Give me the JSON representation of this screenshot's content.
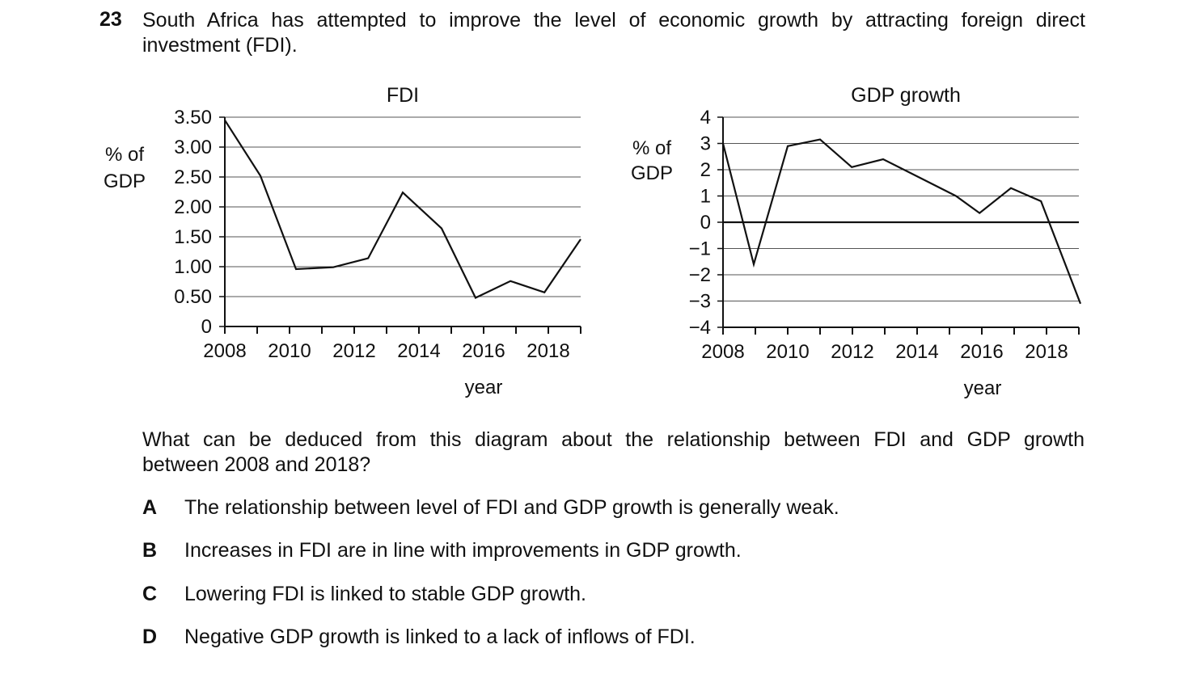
{
  "question": {
    "number": "23",
    "stem_line1": "South Africa has attempted to improve the level of economic growth by attracting foreign direct",
    "stem_line2": "investment (FDI).",
    "prompt_line1": "What can be deduced from this diagram about the relationship between FDI and GDP growth",
    "prompt_line2": "between 2008 and 2018?",
    "options": [
      {
        "letter": "A",
        "text": "The relationship between level of FDI and GDP growth is generally weak."
      },
      {
        "letter": "B",
        "text": "Increases in FDI are in line with improvements in GDP growth."
      },
      {
        "letter": "C",
        "text": "Lowering FDI is linked to stable GDP growth."
      },
      {
        "letter": "D",
        "text": "Negative GDP growth is linked to a lack of inflows of FDI."
      }
    ]
  },
  "chart_data": [
    {
      "type": "line",
      "title": "FDI",
      "xlabel": "year",
      "ylabel_line1": "% of",
      "ylabel_line2": "GDP",
      "xlim": [
        2008,
        2019
      ],
      "ylim": [
        0,
        3.5
      ],
      "grid": true,
      "x_tick_labels": [
        "2008",
        "2010",
        "2012",
        "2014",
        "2016",
        "2018"
      ],
      "y_tick_labels": [
        "3.50",
        "3.00",
        "2.50",
        "2.00",
        "1.50",
        "1.00",
        "0.50",
        "0"
      ],
      "y_ticks": [
        3.5,
        3.0,
        2.5,
        2.0,
        1.5,
        1.0,
        0.5,
        0
      ],
      "series": [
        {
          "name": "FDI",
          "x": [
            2008,
            2009.1,
            2010.2,
            2011.35,
            2012.43,
            2013.5,
            2014.7,
            2015.75,
            2016.83,
            2017.88,
            2019
          ],
          "values": [
            3.45,
            2.52,
            0.96,
            0.99,
            1.14,
            2.24,
            1.64,
            0.48,
            0.76,
            0.57,
            1.46
          ]
        }
      ]
    },
    {
      "type": "line",
      "title": "GDP growth",
      "xlabel": "year",
      "ylabel_line1": "% of",
      "ylabel_line2": "GDP",
      "xlim": [
        2008,
        2019
      ],
      "ylim": [
        -4,
        4
      ],
      "grid": true,
      "x_tick_labels": [
        "2008",
        "2010",
        "2012",
        "2014",
        "2016",
        "2018"
      ],
      "y_tick_labels": [
        "4",
        "3",
        "2",
        "1",
        "0",
        "−1",
        "−2",
        "−3",
        "−4"
      ],
      "y_ticks": [
        4,
        3,
        2,
        1,
        0,
        -1,
        -2,
        -3,
        -4
      ],
      "series": [
        {
          "name": "GDP growth",
          "x": [
            2008,
            2008.95,
            2010,
            2011,
            2011.98,
            2012.95,
            2015.2,
            2015.93,
            2016.9,
            2017.83,
            2019.05
          ],
          "values": [
            3.0,
            -1.6,
            2.9,
            3.15,
            2.1,
            2.4,
            1.0,
            0.35,
            1.3,
            0.8,
            -3.1
          ]
        }
      ]
    }
  ]
}
